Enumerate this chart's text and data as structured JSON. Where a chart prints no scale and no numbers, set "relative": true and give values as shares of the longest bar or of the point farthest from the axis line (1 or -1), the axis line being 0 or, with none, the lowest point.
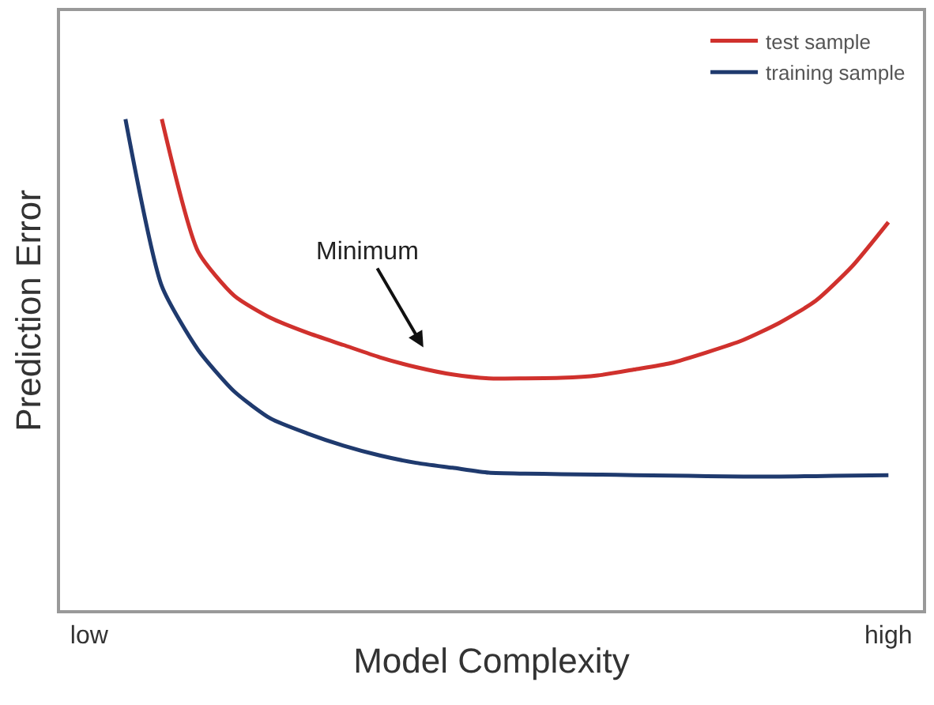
{
  "chart_data": {
    "type": "line",
    "relative": true,
    "xlabel": "Model Complexity",
    "ylabel": "Prediction Error",
    "categories": [
      "low",
      null,
      null,
      null,
      null,
      null,
      null,
      null,
      null,
      null,
      null,
      null,
      null,
      null,
      null,
      null,
      null,
      null,
      null,
      null,
      null,
      null,
      "high"
    ],
    "legend": "top right",
    "marker": "none",
    "line_style": "solid",
    "annotations": [
      "Minimum"
    ],
    "series": [
      {
        "name": "test sample",
        "color": "#d0312d",
        "values": [
          null,
          null,
          1.0,
          0.73,
          0.64,
          0.595,
          0.565,
          0.54,
          0.515,
          0.495,
          0.48,
          0.472,
          0.472,
          0.473,
          0.478,
          0.49,
          0.503,
          0.525,
          0.55,
          0.585,
          0.63,
          0.7,
          0.79
        ]
      },
      {
        "name": "training sample",
        "color": "#1f3a6e",
        "values": [
          null,
          1.0,
          0.66,
          0.53,
          0.445,
          0.39,
          0.36,
          0.335,
          0.315,
          0.3,
          0.29,
          0.28,
          0.278,
          0.277,
          0.276,
          0.275,
          0.274,
          0.273,
          0.272,
          0.272,
          0.273,
          0.274,
          0.275
        ]
      }
    ]
  }
}
